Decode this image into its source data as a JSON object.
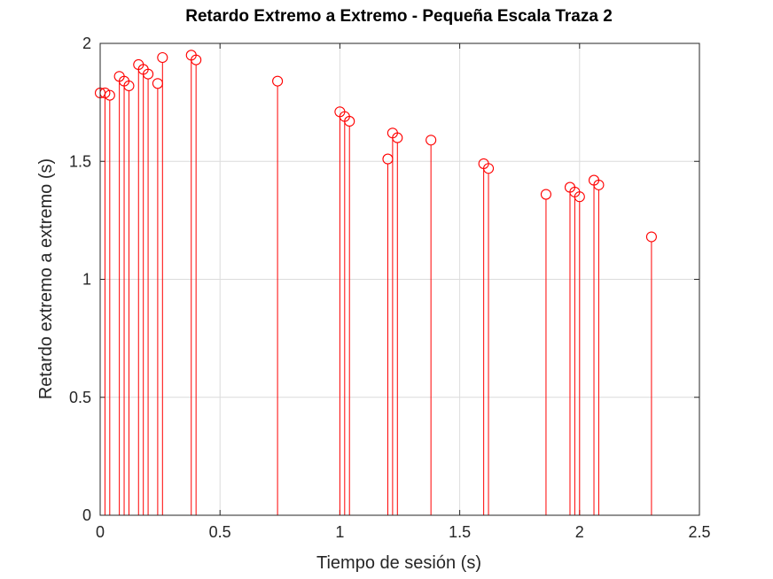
{
  "chart_data": {
    "type": "stem",
    "title": "Retardo Extremo a Extremo - Pequeña Escala Traza 2",
    "xlabel": "Tiempo de sesión (s)",
    "ylabel": "Retardo extremo a extremo (s)",
    "xlim": [
      0,
      2.5
    ],
    "ylim": [
      0,
      2
    ],
    "xticks": [
      0,
      0.5,
      1,
      1.5,
      2,
      2.5
    ],
    "xtick_labels": [
      "0",
      "0.5",
      "1",
      "1.5",
      "2",
      "2.5"
    ],
    "yticks": [
      0,
      0.5,
      1,
      1.5,
      2
    ],
    "ytick_labels": [
      "0",
      "0.5",
      "1",
      "1.5",
      "2"
    ],
    "grid": true,
    "color": "#ff0000",
    "marker": "circle",
    "series": [
      {
        "x": [
          0.0,
          0.02,
          0.04,
          0.08,
          0.1,
          0.12,
          0.16,
          0.18,
          0.2,
          0.24,
          0.26,
          0.38,
          0.4,
          0.74,
          1.0,
          1.02,
          1.04,
          1.2,
          1.22,
          1.24,
          1.38,
          1.6,
          1.62,
          1.86,
          1.96,
          1.98,
          2.0,
          2.06,
          2.08,
          2.3
        ],
        "y": [
          1.79,
          1.79,
          1.78,
          1.86,
          1.84,
          1.82,
          1.91,
          1.89,
          1.87,
          1.83,
          1.94,
          1.95,
          1.93,
          1.84,
          1.71,
          1.69,
          1.67,
          1.51,
          1.62,
          1.6,
          1.59,
          1.49,
          1.47,
          1.36,
          1.39,
          1.37,
          1.35,
          1.42,
          1.4,
          1.18
        ]
      }
    ]
  }
}
